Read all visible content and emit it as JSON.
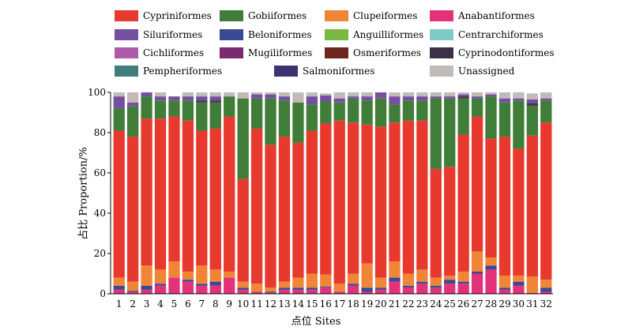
{
  "chart_data": {
    "type": "bar",
    "stacked": true,
    "xlabel": "点位 Sites",
    "ylabel": "占比 Proportion/%",
    "ylim": [
      0,
      100
    ],
    "yticks": [
      0,
      20,
      40,
      60,
      80,
      100
    ],
    "categories": [
      "1",
      "2",
      "3",
      "4",
      "5",
      "6",
      "7",
      "8",
      "9",
      "10",
      "11",
      "12",
      "13",
      "14",
      "15",
      "16",
      "17",
      "18",
      "19",
      "20",
      "21",
      "22",
      "23",
      "24",
      "25",
      "26",
      "27",
      "28",
      "29",
      "30",
      "31",
      "32"
    ],
    "legend_position": "top",
    "series": [
      {
        "name": "Anabantiformes",
        "color": "#e4327a",
        "values": [
          2,
          1,
          2,
          4,
          8,
          6,
          4,
          4,
          8,
          2,
          1,
          0.5,
          2,
          2,
          2,
          3,
          1,
          4,
          1,
          2,
          6,
          3,
          5,
          3,
          5,
          5,
          10,
          12,
          2,
          4,
          0.5,
          1
        ]
      },
      {
        "name": "Beloniformes",
        "color": "#3b4894",
        "values": [
          2,
          0.5,
          2,
          1,
          0,
          1,
          1,
          2,
          0,
          1,
          0,
          0.5,
          1,
          1,
          1,
          0.5,
          0,
          1,
          2,
          1,
          2,
          1,
          1,
          1,
          2,
          1,
          1,
          2,
          1,
          2,
          0,
          2
        ]
      },
      {
        "name": "Clupeiformes",
        "color": "#f08536",
        "values": [
          4,
          4.5,
          10,
          7,
          8,
          4,
          9,
          6,
          3,
          3,
          4,
          2,
          3,
          5,
          7,
          6,
          4,
          5,
          12,
          5,
          8,
          6,
          6,
          4,
          2,
          5,
          10,
          4,
          6,
          3,
          8,
          4
        ]
      },
      {
        "name": "Cypriniformes",
        "color": "#e8392e",
        "values": [
          73,
          72,
          73,
          75,
          72,
          75,
          67,
          70,
          77,
          51,
          77,
          71,
          72,
          67,
          71,
          75,
          81,
          75,
          69,
          75,
          69,
          76,
          74,
          54,
          54,
          68,
          67,
          59,
          69,
          63,
          70,
          78
        ]
      },
      {
        "name": "Gobiiformes",
        "color": "#3f7d39",
        "values": [
          11,
          15,
          11,
          9,
          8,
          10,
          14,
          13,
          10,
          40,
          15,
          23,
          18,
          20,
          13,
          11,
          9,
          12,
          12,
          14,
          9,
          10,
          10,
          35,
          34,
          18,
          9,
          21,
          17,
          24,
          15,
          11
        ]
      },
      {
        "name": "Cyprinodontiformes",
        "color": "#3c3048",
        "values": [
          0,
          0,
          0,
          0,
          0,
          0,
          1,
          1,
          0,
          0,
          0,
          0,
          0,
          0,
          0,
          0,
          0,
          0,
          0,
          0,
          0,
          0,
          0,
          0,
          0,
          1,
          0,
          0,
          0,
          0,
          1,
          0
        ]
      },
      {
        "name": "Siluriformes",
        "color": "#7650a0",
        "values": [
          6,
          2,
          2,
          2,
          2,
          2,
          2,
          2,
          0,
          0,
          2,
          2,
          2,
          0,
          4,
          3,
          2,
          1,
          2,
          3,
          4,
          2,
          2,
          1,
          1,
          1,
          1,
          1,
          2,
          1,
          2,
          1
        ]
      },
      {
        "name": "Unassigned",
        "color": "#c2b9b9",
        "values": [
          2,
          5,
          0,
          2,
          0,
          2,
          2,
          2,
          2,
          3,
          1,
          1,
          2,
          5,
          2,
          1,
          3,
          2,
          2,
          0,
          2,
          2,
          2,
          2,
          2,
          1,
          2,
          1,
          3,
          3,
          3,
          3
        ]
      }
    ]
  },
  "legend": [
    {
      "label": "Cypriniformes",
      "color": "#e8392e"
    },
    {
      "label": "Gobiiformes",
      "color": "#3f7d39"
    },
    {
      "label": "Clupeiformes",
      "color": "#f08536"
    },
    {
      "label": "Anabantiformes",
      "color": "#e4327a"
    },
    {
      "label": "Siluriformes",
      "color": "#7650a0"
    },
    {
      "label": "Beloniformes",
      "color": "#3b4894"
    },
    {
      "label": "Anguilliformes",
      "color": "#7ab840"
    },
    {
      "label": "Centrarchiformes",
      "color": "#7ecac7"
    },
    {
      "label": "Cichliformes",
      "color": "#ad5aa8"
    },
    {
      "label": "Mugiliformes",
      "color": "#7a2a71"
    },
    {
      "label": "Osmeriformes",
      "color": "#6e2620"
    },
    {
      "label": "Cyprinodontiformes",
      "color": "#3c3048"
    },
    {
      "label": "Pempheriformes",
      "color": "#3e7d7a"
    },
    {
      "label": "Salmoniformes",
      "color": "#3a3371"
    },
    {
      "label": "Unassigned",
      "color": "#c2b9b9"
    }
  ]
}
